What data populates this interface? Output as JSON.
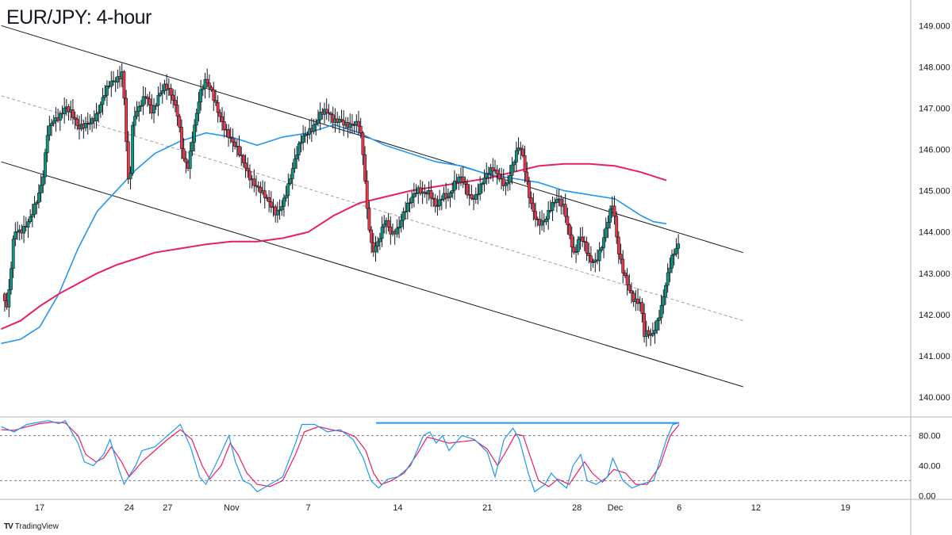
{
  "title": "EUR/JPY: 4-hour",
  "brand": {
    "logo": "TV",
    "text": "TradingView"
  },
  "colors": {
    "bull": "#089981",
    "bear": "#f23645",
    "wick": "#131722",
    "ma_fast": "#2196f3",
    "ma_slow": "#e91e63",
    "channel": "#131722",
    "midline": "#9e9e9e",
    "stoch_k": "#2196f3",
    "stoch_d": "#e91e63",
    "stoch_resist": "#2196f3"
  },
  "chart_data": {
    "type": "line",
    "title": "EUR/JPY: 4-hour",
    "x_ticks": [
      "17",
      "24",
      "27",
      "Nov",
      "7",
      "14",
      "21",
      "28",
      "Dec",
      "6",
      "12",
      "19"
    ],
    "x_tick_days": [
      0,
      7,
      10,
      15,
      21,
      28,
      35,
      42,
      45,
      50,
      56,
      63
    ],
    "x_range_days": [
      -3.1,
      68.1
    ],
    "y_ticks": [
      "140.000",
      "141.000",
      "142.000",
      "143.000",
      "144.000",
      "145.000",
      "146.000",
      "147.000",
      "148.000",
      "149.000"
    ],
    "ylim": [
      139.52,
      149.62
    ],
    "price_path": [
      [
        -2.9,
        142.5
      ],
      [
        -2.5,
        142.1
      ],
      [
        -2.0,
        143.9
      ],
      [
        -1.5,
        144.0
      ],
      [
        -1.0,
        144.3
      ],
      [
        -0.5,
        144.6
      ],
      [
        0.0,
        144.9
      ],
      [
        0.3,
        145.3
      ],
      [
        0.6,
        146.3
      ],
      [
        1.0,
        146.7
      ],
      [
        1.5,
        146.9
      ],
      [
        2.0,
        147.1
      ],
      [
        2.5,
        146.8
      ],
      [
        3.0,
        146.4
      ],
      [
        3.5,
        146.6
      ],
      [
        4.0,
        146.8
      ],
      [
        4.5,
        146.9
      ],
      [
        5.0,
        147.2
      ],
      [
        5.5,
        147.5
      ],
      [
        6.0,
        147.7
      ],
      [
        6.5,
        148.0
      ],
      [
        6.8,
        146.1
      ],
      [
        7.0,
        144.9
      ],
      [
        7.3,
        146.7
      ],
      [
        7.8,
        146.9
      ],
      [
        8.3,
        147.3
      ],
      [
        8.8,
        147.0
      ],
      [
        9.3,
        147.4
      ],
      [
        9.8,
        147.5
      ],
      [
        10.3,
        147.2
      ],
      [
        10.8,
        146.8
      ],
      [
        11.2,
        145.9
      ],
      [
        11.6,
        145.7
      ],
      [
        12.0,
        146.4
      ],
      [
        12.5,
        147.2
      ],
      [
        13.0,
        147.6
      ],
      [
        13.5,
        147.4
      ],
      [
        14.0,
        147.0
      ],
      [
        14.5,
        146.5
      ],
      [
        15.0,
        146.1
      ],
      [
        15.5,
        145.9
      ],
      [
        16.0,
        145.7
      ],
      [
        16.5,
        145.4
      ],
      [
        17.0,
        145.1
      ],
      [
        17.5,
        144.8
      ],
      [
        18.0,
        144.6
      ],
      [
        18.5,
        144.5
      ],
      [
        19.0,
        144.8
      ],
      [
        19.5,
        145.2
      ],
      [
        20.0,
        145.7
      ],
      [
        20.5,
        146.2
      ],
      [
        21.0,
        146.5
      ],
      [
        21.5,
        146.7
      ],
      [
        22.0,
        146.9
      ],
      [
        22.5,
        146.8
      ],
      [
        23.0,
        146.6
      ],
      [
        23.5,
        146.8
      ],
      [
        24.0,
        146.7
      ],
      [
        24.5,
        146.6
      ],
      [
        25.0,
        146.5
      ],
      [
        25.3,
        145.7
      ],
      [
        25.6,
        144.5
      ],
      [
        26.0,
        143.6
      ],
      [
        26.5,
        143.9
      ],
      [
        27.0,
        144.3
      ],
      [
        27.5,
        143.8
      ],
      [
        28.0,
        144.0
      ],
      [
        28.5,
        144.6
      ],
      [
        29.0,
        144.9
      ],
      [
        29.5,
        145.0
      ],
      [
        30.0,
        144.8
      ],
      [
        30.5,
        144.9
      ],
      [
        31.0,
        144.7
      ],
      [
        31.5,
        145.0
      ],
      [
        32.0,
        144.8
      ],
      [
        32.5,
        145.1
      ],
      [
        33.0,
        145.3
      ],
      [
        33.5,
        145.0
      ],
      [
        34.0,
        144.9
      ],
      [
        34.5,
        145.1
      ],
      [
        35.0,
        145.3
      ],
      [
        35.5,
        145.5
      ],
      [
        36.0,
        145.4
      ],
      [
        36.5,
        145.2
      ],
      [
        37.0,
        145.6
      ],
      [
        37.5,
        146.0
      ],
      [
        37.8,
        145.7
      ],
      [
        38.2,
        145.0
      ],
      [
        38.6,
        144.6
      ],
      [
        39.0,
        144.3
      ],
      [
        39.5,
        144.2
      ],
      [
        40.0,
        144.5
      ],
      [
        40.5,
        144.8
      ],
      [
        41.0,
        144.7
      ],
      [
        41.5,
        143.9
      ],
      [
        41.8,
        143.4
      ],
      [
        42.2,
        143.8
      ],
      [
        42.6,
        143.6
      ],
      [
        43.0,
        143.3
      ],
      [
        43.5,
        143.4
      ],
      [
        44.0,
        143.8
      ],
      [
        44.5,
        144.3
      ],
      [
        44.8,
        144.6
      ],
      [
        45.2,
        143.5
      ],
      [
        45.6,
        143.1
      ],
      [
        46.0,
        142.8
      ],
      [
        46.5,
        142.4
      ],
      [
        47.0,
        142.2
      ],
      [
        47.3,
        141.3
      ],
      [
        47.5,
        141.5
      ],
      [
        47.8,
        141.4
      ],
      [
        48.2,
        141.8
      ],
      [
        48.6,
        142.3
      ],
      [
        49.0,
        142.9
      ],
      [
        49.4,
        143.3
      ],
      [
        49.8,
        143.5
      ],
      [
        50.0,
        143.6
      ]
    ],
    "series": [
      {
        "values": [
          [
            -3.0,
            141.3
          ],
          [
            -1.5,
            141.4
          ],
          [
            0,
            141.7
          ],
          [
            1.5,
            142.5
          ],
          [
            3,
            143.6
          ],
          [
            4.5,
            144.5
          ],
          [
            6,
            145.0
          ],
          [
            7.5,
            145.5
          ],
          [
            9,
            145.9
          ],
          [
            11,
            146.2
          ],
          [
            13,
            146.4
          ],
          [
            15,
            146.3
          ],
          [
            17,
            146.1
          ],
          [
            19,
            146.3
          ],
          [
            21,
            146.4
          ],
          [
            23,
            146.6
          ],
          [
            25,
            146.4
          ],
          [
            27,
            146.1
          ],
          [
            29,
            145.9
          ],
          [
            31,
            145.7
          ],
          [
            33,
            145.6
          ],
          [
            35,
            145.4
          ],
          [
            37,
            145.3
          ],
          [
            39,
            145.2
          ],
          [
            41,
            145.0
          ],
          [
            43,
            144.9
          ],
          [
            45,
            144.8
          ],
          [
            46,
            144.6
          ],
          [
            47,
            144.4
          ],
          [
            48,
            144.25
          ],
          [
            49,
            144.2
          ]
        ]
      },
      {
        "values": [
          [
            -3.0,
            141.65
          ],
          [
            -1.5,
            141.85
          ],
          [
            0,
            142.2
          ],
          [
            1.5,
            142.5
          ],
          [
            3,
            142.75
          ],
          [
            4.5,
            143.0
          ],
          [
            6,
            143.2
          ],
          [
            7.5,
            143.35
          ],
          [
            9,
            143.5
          ],
          [
            11,
            143.6
          ],
          [
            13,
            143.7
          ],
          [
            15,
            143.77
          ],
          [
            17,
            143.77
          ],
          [
            19,
            143.85
          ],
          [
            21,
            144.0
          ],
          [
            23,
            144.4
          ],
          [
            25,
            144.7
          ],
          [
            27,
            144.85
          ],
          [
            29,
            145.0
          ],
          [
            31,
            145.1
          ],
          [
            33,
            145.2
          ],
          [
            35,
            145.3
          ],
          [
            37,
            145.45
          ],
          [
            39,
            145.6
          ],
          [
            41,
            145.65
          ],
          [
            43,
            145.65
          ],
          [
            45,
            145.6
          ],
          [
            47,
            145.45
          ],
          [
            49,
            145.25
          ]
        ]
      }
    ],
    "channel": {
      "upper": [
        [
          -3.0,
          149.0
        ],
        [
          55.0,
          143.5
        ]
      ],
      "lower": [
        [
          -3.0,
          145.7
        ],
        [
          55.0,
          140.25
        ]
      ],
      "mid": [
        [
          -3.0,
          147.3
        ],
        [
          55.0,
          141.85
        ]
      ]
    },
    "stochastic": {
      "y_ticks": [
        "0.00",
        "40.00",
        "80.00"
      ],
      "ylim": [
        -5,
        105
      ],
      "levels": [
        20,
        80
      ],
      "resistance": [
        [
          26.3,
          97
        ],
        [
          50.0,
          97
        ]
      ],
      "k": [
        [
          -3.0,
          92
        ],
        [
          -2,
          85
        ],
        [
          -1,
          95
        ],
        [
          0,
          98
        ],
        [
          0.7,
          100
        ],
        [
          1.5,
          96
        ],
        [
          2,
          100
        ],
        [
          3,
          70
        ],
        [
          3.5,
          45
        ],
        [
          4.2,
          40
        ],
        [
          5,
          55
        ],
        [
          5.5,
          75
        ],
        [
          6.2,
          35
        ],
        [
          6.6,
          15
        ],
        [
          7.5,
          40
        ],
        [
          8,
          60
        ],
        [
          9,
          65
        ],
        [
          10,
          80
        ],
        [
          11,
          95
        ],
        [
          11.8,
          65
        ],
        [
          12.5,
          25
        ],
        [
          13,
          15
        ],
        [
          14,
          50
        ],
        [
          14.8,
          80
        ],
        [
          15.3,
          45
        ],
        [
          15.9,
          20
        ],
        [
          16.5,
          15
        ],
        [
          17,
          5
        ],
        [
          18,
          15
        ],
        [
          19,
          25
        ],
        [
          20,
          70
        ],
        [
          20.5,
          95
        ],
        [
          21.5,
          95
        ],
        [
          22.5,
          85
        ],
        [
          23.5,
          88
        ],
        [
          24.5,
          75
        ],
        [
          25.3,
          50
        ],
        [
          25.9,
          20
        ],
        [
          26.5,
          10
        ],
        [
          27.2,
          22
        ],
        [
          28,
          25
        ],
        [
          29,
          40
        ],
        [
          30,
          80
        ],
        [
          30.5,
          85
        ],
        [
          31,
          70
        ],
        [
          31.5,
          80
        ],
        [
          32,
          60
        ],
        [
          33,
          80
        ],
        [
          34,
          75
        ],
        [
          35,
          58
        ],
        [
          35.6,
          25
        ],
        [
          36.3,
          75
        ],
        [
          37,
          90
        ],
        [
          37.5,
          75
        ],
        [
          38.2,
          30
        ],
        [
          38.7,
          5
        ],
        [
          39.5,
          15
        ],
        [
          40,
          30
        ],
        [
          40.5,
          20
        ],
        [
          41.2,
          10
        ],
        [
          41.7,
          40
        ],
        [
          42.3,
          55
        ],
        [
          42.8,
          20
        ],
        [
          43.5,
          15
        ],
        [
          44.4,
          25
        ],
        [
          44.8,
          50
        ],
        [
          45.6,
          20
        ],
        [
          46.3,
          10
        ],
        [
          47,
          15
        ],
        [
          48,
          20
        ],
        [
          49,
          75
        ],
        [
          49.5,
          95
        ],
        [
          50,
          97
        ]
      ],
      "d": [
        [
          -3.0,
          88
        ],
        [
          -2,
          87
        ],
        [
          -1,
          92
        ],
        [
          0,
          96
        ],
        [
          1,
          98
        ],
        [
          2,
          97
        ],
        [
          3,
          80
        ],
        [
          3.6,
          55
        ],
        [
          4.4,
          45
        ],
        [
          5,
          50
        ],
        [
          5.6,
          65
        ],
        [
          6.4,
          45
        ],
        [
          7,
          25
        ],
        [
          8,
          45
        ],
        [
          9,
          60
        ],
        [
          10,
          75
        ],
        [
          11,
          88
        ],
        [
          11.9,
          75
        ],
        [
          12.7,
          40
        ],
        [
          13.3,
          22
        ],
        [
          14.2,
          40
        ],
        [
          14.9,
          70
        ],
        [
          15.5,
          55
        ],
        [
          16.2,
          30
        ],
        [
          17,
          15
        ],
        [
          18,
          12
        ],
        [
          19,
          20
        ],
        [
          20,
          55
        ],
        [
          20.7,
          85
        ],
        [
          21.8,
          92
        ],
        [
          22.8,
          88
        ],
        [
          23.8,
          85
        ],
        [
          24.7,
          78
        ],
        [
          25.5,
          60
        ],
        [
          26.1,
          30
        ],
        [
          26.7,
          15
        ],
        [
          27.5,
          20
        ],
        [
          28.5,
          30
        ],
        [
          29.5,
          55
        ],
        [
          30.3,
          78
        ],
        [
          31,
          75
        ],
        [
          32,
          70
        ],
        [
          33,
          72
        ],
        [
          34,
          74
        ],
        [
          35,
          62
        ],
        [
          35.8,
          40
        ],
        [
          36.5,
          60
        ],
        [
          37.2,
          82
        ],
        [
          37.8,
          80
        ],
        [
          38.5,
          45
        ],
        [
          39,
          20
        ],
        [
          39.8,
          12
        ],
        [
          40.5,
          22
        ],
        [
          41.4,
          15
        ],
        [
          42,
          30
        ],
        [
          42.6,
          45
        ],
        [
          43.2,
          30
        ],
        [
          44,
          18
        ],
        [
          44.9,
          35
        ],
        [
          45.8,
          30
        ],
        [
          46.6,
          15
        ],
        [
          47.5,
          15
        ],
        [
          48.5,
          40
        ],
        [
          49.3,
          80
        ],
        [
          50,
          95
        ]
      ]
    }
  }
}
